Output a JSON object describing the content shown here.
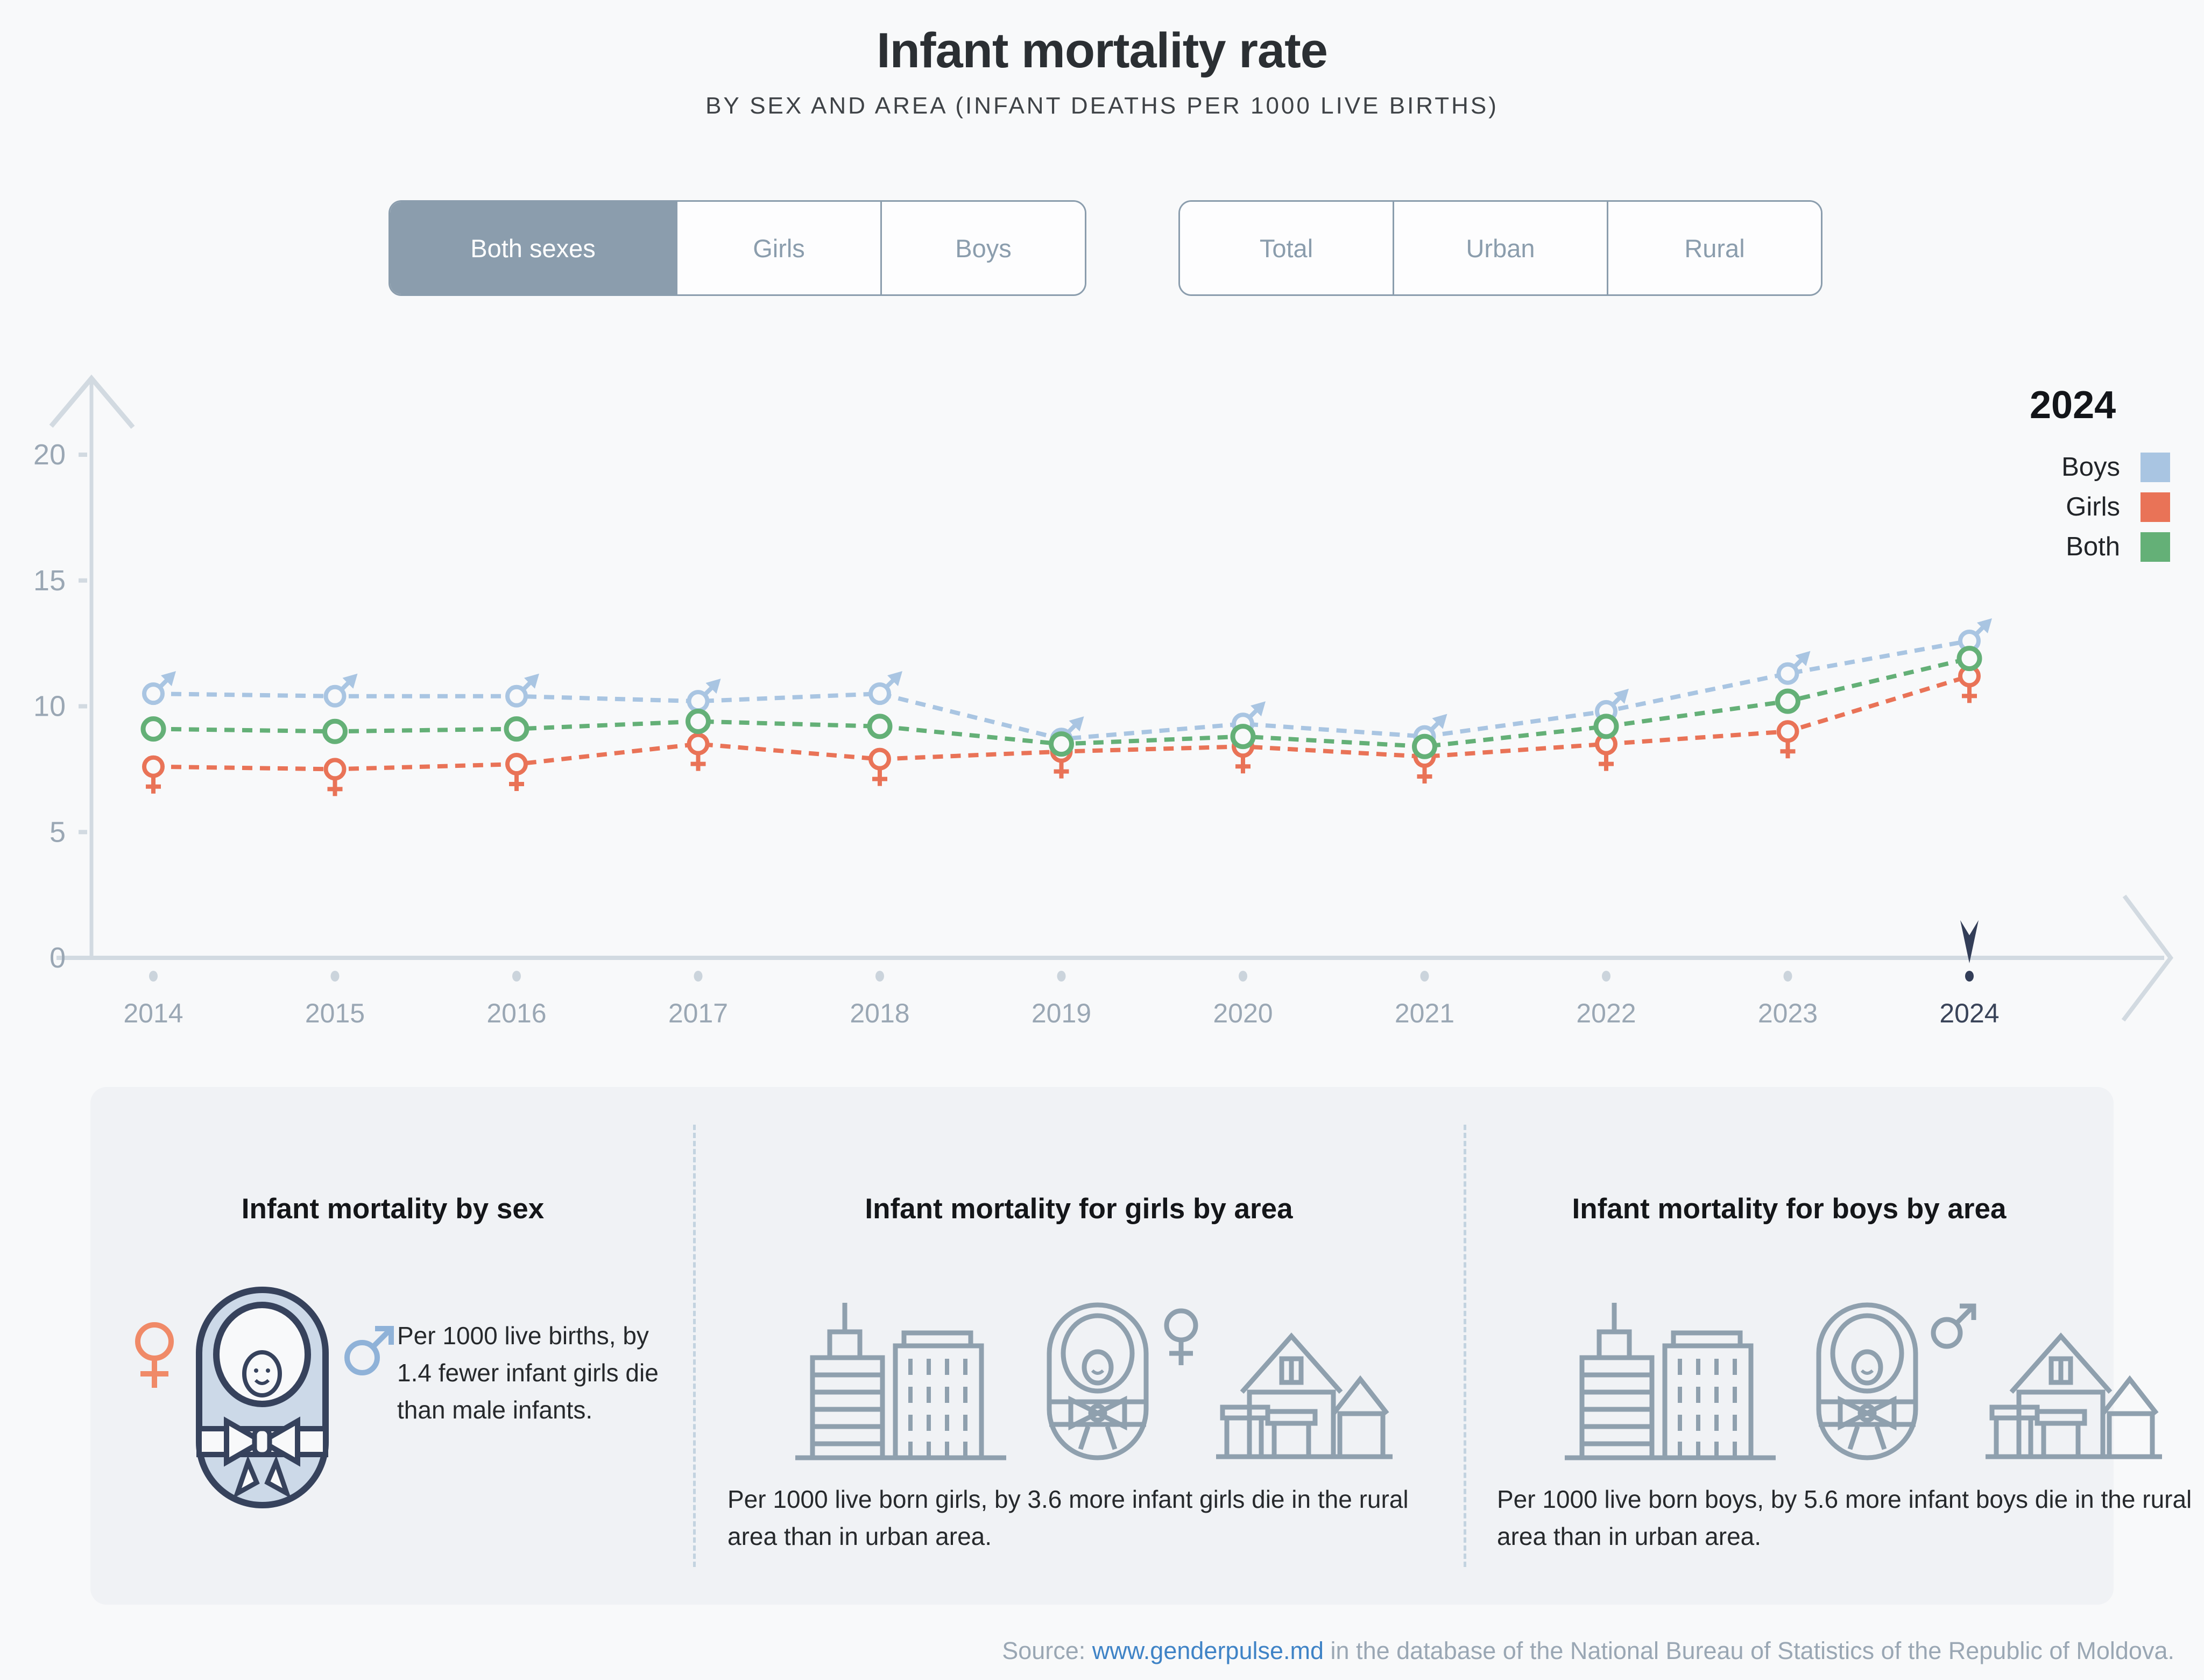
{
  "header": {
    "title": "Infant mortality rate",
    "subtitle": "BY SEX AND AREA (INFANT DEATHS PER 1000 LIVE BIRTHS)"
  },
  "toggles": {
    "sex": {
      "options": [
        {
          "label": "Both sexes",
          "active": true
        },
        {
          "label": "Girls",
          "active": false
        },
        {
          "label": "Boys",
          "active": false
        }
      ]
    },
    "area": {
      "options": [
        {
          "label": "Total",
          "active": false
        },
        {
          "label": "Urban",
          "active": false
        },
        {
          "label": "Rural",
          "active": false
        }
      ]
    }
  },
  "legend": {
    "title": "2024",
    "items": [
      {
        "label": "Boys",
        "color": "#a9c5e2"
      },
      {
        "label": "Girls",
        "color": "#e97357"
      },
      {
        "label": "Both",
        "color": "#64b077"
      }
    ]
  },
  "chart_data": {
    "type": "line",
    "title": "Infant mortality rate by sex, 2014-2024",
    "x": [
      "2014",
      "2015",
      "2016",
      "2017",
      "2018",
      "2019",
      "2020",
      "2021",
      "2022",
      "2023",
      "2024"
    ],
    "series": [
      {
        "name": "Boys",
        "marker": "male",
        "color": "#a9c5e2",
        "values": [
          10.5,
          10.4,
          10.4,
          10.2,
          10.5,
          8.7,
          9.3,
          8.8,
          9.8,
          11.3,
          12.6
        ]
      },
      {
        "name": "Girls",
        "marker": "female",
        "color": "#e97357",
        "values": [
          7.6,
          7.5,
          7.7,
          8.5,
          7.9,
          8.2,
          8.4,
          8.0,
          8.5,
          9.0,
          11.2
        ]
      },
      {
        "name": "Both",
        "marker": "circle",
        "color": "#64b077",
        "values": [
          9.1,
          9.0,
          9.1,
          9.4,
          9.2,
          8.5,
          8.8,
          8.4,
          9.2,
          10.2,
          11.9
        ]
      }
    ],
    "yticks": [
      0,
      5,
      10,
      15,
      20
    ],
    "ylim": [
      0,
      22
    ],
    "xlabel": "",
    "ylabel": "",
    "grid": false,
    "line_style": "dashed",
    "legend_position": "top-right",
    "selected_year": "2024"
  },
  "cards": [
    {
      "title": "Infant mortality by sex",
      "text": "Per 1000 live births, by 1.4 fewer infant girls die than male infants."
    },
    {
      "title": "Infant mortality for girls by area",
      "text": "Per 1000 live born girls, by 3.6 more infant girls die in the rural area than in urban area."
    },
    {
      "title": "Infant mortality for boys by area",
      "text": "Per 1000 live born boys, by 5.6 more infant boys die in the rural area than in urban area."
    }
  ],
  "source": {
    "prefix": "Source: ",
    "link": "www.genderpulse.md",
    "suffix": " in the database of the National Bureau of Statistics of the Republic of Moldova."
  },
  "palette": {
    "axis": "#d2dae1",
    "axis_text": "#9aa7b4",
    "selected_text": "#3a4459",
    "marker_navy": "#333e58",
    "background": "#f8f9fa",
    "slate": "#8b9dad",
    "icon_gray": "#8fa0ae",
    "baby_fill": "#ccd9e8",
    "baby_outline": "#36425c",
    "female_orange": "#f08a68",
    "male_blue": "#8fb2d8"
  }
}
